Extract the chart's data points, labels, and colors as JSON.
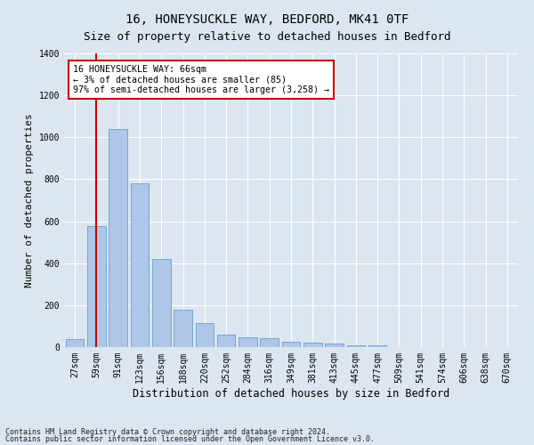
{
  "title1": "16, HONEYSUCKLE WAY, BEDFORD, MK41 0TF",
  "title2": "Size of property relative to detached houses in Bedford",
  "xlabel": "Distribution of detached houses by size in Bedford",
  "ylabel": "Number of detached properties",
  "categories": [
    "27sqm",
    "59sqm",
    "91sqm",
    "123sqm",
    "156sqm",
    "188sqm",
    "220sqm",
    "252sqm",
    "284sqm",
    "316sqm",
    "349sqm",
    "381sqm",
    "413sqm",
    "445sqm",
    "477sqm",
    "509sqm",
    "541sqm",
    "574sqm",
    "606sqm",
    "638sqm",
    "670sqm"
  ],
  "values": [
    40,
    575,
    1040,
    780,
    420,
    180,
    115,
    60,
    45,
    42,
    25,
    22,
    17,
    10,
    8,
    0,
    0,
    0,
    0,
    0,
    0
  ],
  "bar_color": "#aec6e8",
  "bar_edge_color": "#6a9fcf",
  "highlight_color": "#cc0000",
  "vline_bar_index": 1,
  "annotation_line1": "16 HONEYSUCKLE WAY: 66sqm",
  "annotation_line2": "← 3% of detached houses are smaller (85)",
  "annotation_line3": "97% of semi-detached houses are larger (3,258) →",
  "annotation_box_color": "#ffffff",
  "annotation_box_edge_color": "#cc0000",
  "ylim": [
    0,
    1400
  ],
  "yticks": [
    0,
    200,
    400,
    600,
    800,
    1000,
    1200,
    1400
  ],
  "footer1": "Contains HM Land Registry data © Crown copyright and database right 2024.",
  "footer2": "Contains public sector information licensed under the Open Government Licence v3.0.",
  "background_color": "#dce6f0",
  "plot_background_color": "#dce6f0",
  "title1_fontsize": 10,
  "title2_fontsize": 9,
  "xlabel_fontsize": 8.5,
  "ylabel_fontsize": 8,
  "tick_fontsize": 7,
  "footer_fontsize": 6
}
